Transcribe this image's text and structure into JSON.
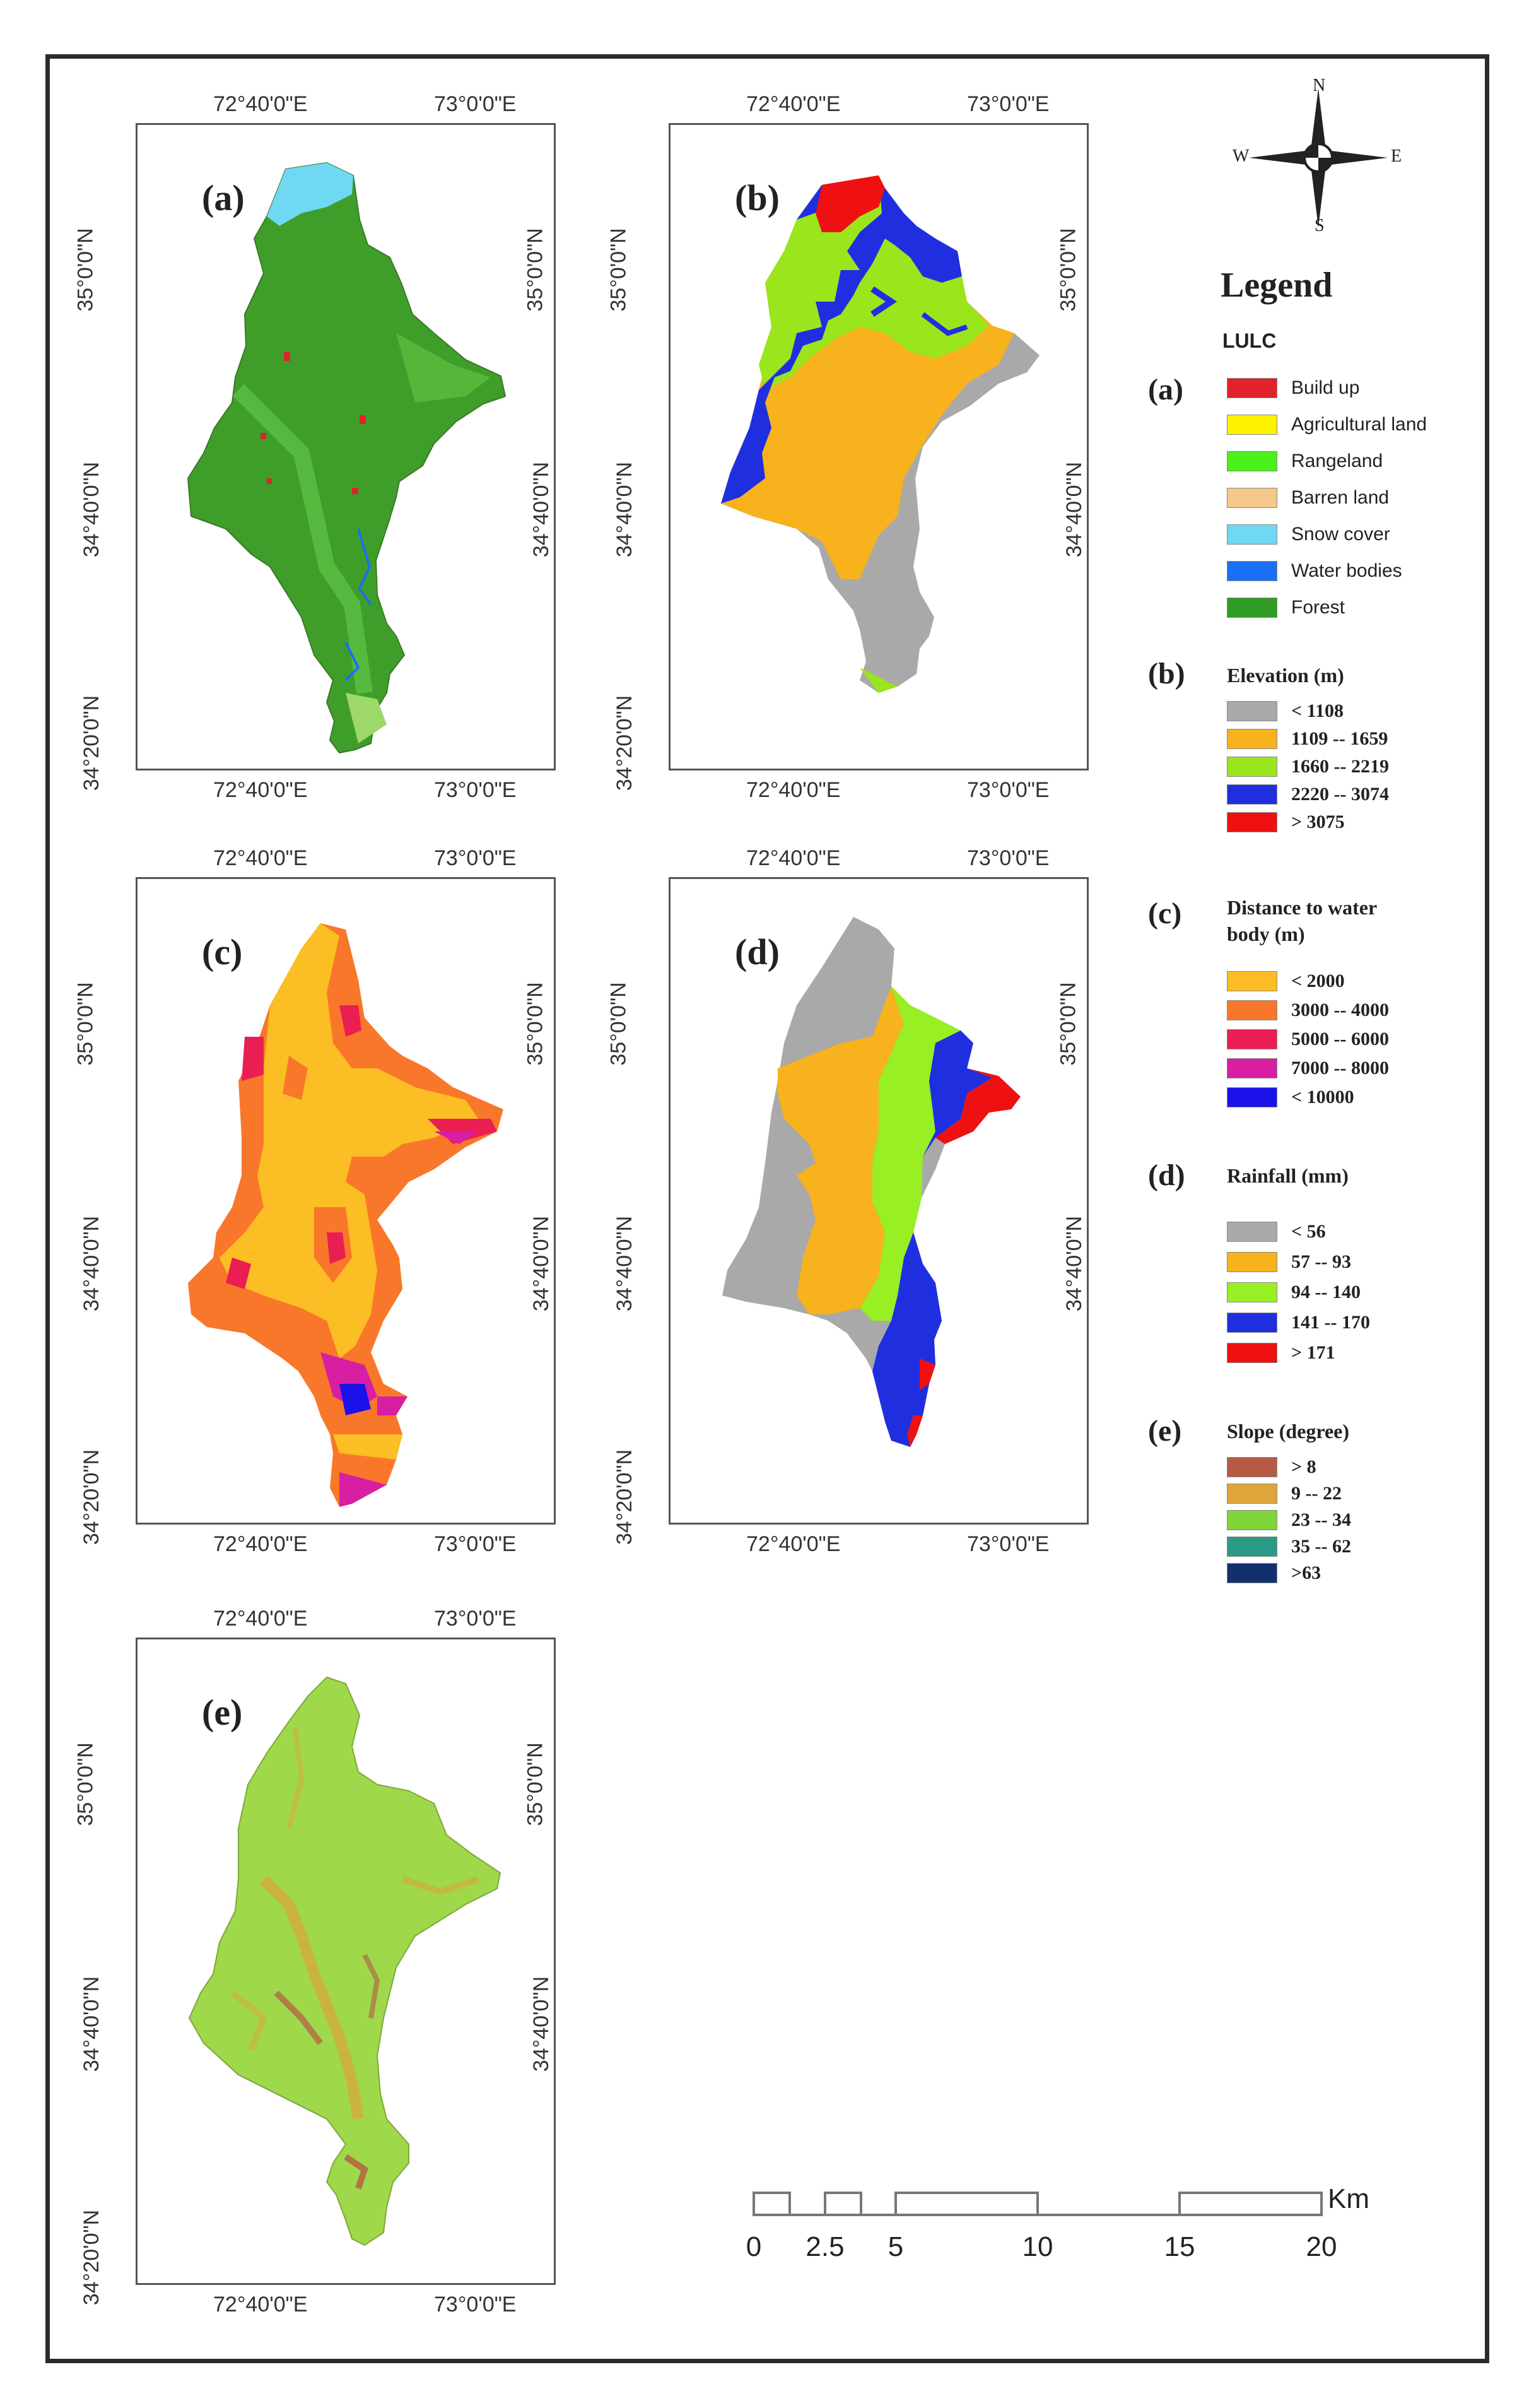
{
  "panels": [
    {
      "id": "a",
      "label": "(a)",
      "lon_left": "72°40'0\"E",
      "lon_right": "73°0'0\"E",
      "lat_top": "35°0'0\"N",
      "lat_bottom": "34°40'0\"N",
      "lat_lowest": "34°20'0\"N"
    },
    {
      "id": "b",
      "label": "(b)",
      "lon_left": "72°40'0\"E",
      "lon_right": "73°0'0\"E",
      "lat_top": "35°0'0\"N",
      "lat_bottom": "34°40'0\"N",
      "lat_lowest": "34°20'0\"N"
    },
    {
      "id": "c",
      "label": "(c)",
      "lon_left": "72°40'0\"E",
      "lon_right": "73°0'0\"E",
      "lat_top": "35°0'0\"N",
      "lat_bottom": "34°40'0\"N",
      "lat_lowest": "34°20'0\"N"
    },
    {
      "id": "d",
      "label": "(d)",
      "lon_left": "72°40'0\"E",
      "lon_right": "73°0'0\"E",
      "lat_top": "35°0'0\"N",
      "lat_bottom": "34°40'0\"N",
      "lat_lowest": "34°20'0\"N"
    },
    {
      "id": "e",
      "label": "(e)",
      "lon_left": "72°40'0\"E",
      "lon_right": "73°0'0\"E",
      "lat_top": "35°0'0\"N",
      "lat_bottom": "34°40'0\"N",
      "lat_lowest": "34°20'0\"N"
    }
  ],
  "compass": {
    "n": "N",
    "s": "S",
    "e": "E",
    "w": "W",
    "icon": "north-arrow-compass-icon"
  },
  "legend": {
    "title": "Legend",
    "lulc": {
      "heading": "LULC",
      "letter": "(a)",
      "items": [
        {
          "label": "Build up",
          "color": "#e0232a"
        },
        {
          "label": "Agricultural land",
          "color": "#fff200"
        },
        {
          "label": "Rangeland",
          "color": "#4cf01a"
        },
        {
          "label": "Barren land",
          "color": "#f3c88a"
        },
        {
          "label": "Snow cover",
          "color": "#6fd8f2"
        },
        {
          "label": "Water bodies",
          "color": "#1a6ff2"
        },
        {
          "label": "Forest",
          "color": "#2e9b24"
        }
      ]
    },
    "elevation": {
      "letter": "(b)",
      "heading": "Elevation (m)",
      "items": [
        {
          "label": "< 1108",
          "color": "#a9a9a9"
        },
        {
          "label": "1109 -- 1659",
          "color": "#f7b21d"
        },
        {
          "label": "1660 -- 2219",
          "color": "#9be51d"
        },
        {
          "label": "2220 -- 3074",
          "color": "#1f2fe0"
        },
        {
          "label": "> 3075",
          "color": "#ef1111"
        }
      ]
    },
    "distance": {
      "letter": "(c)",
      "heading_line1": "Distance to water",
      "heading_line2": "body (m)",
      "items": [
        {
          "label": "< 2000",
          "color": "#fbbe24"
        },
        {
          "label": "3000 -- 4000",
          "color": "#f9772a"
        },
        {
          "label": "5000 -- 6000",
          "color": "#ea1e52"
        },
        {
          "label": "7000 -- 8000",
          "color": "#d81ea2"
        },
        {
          "label": "< 10000",
          "color": "#1a12e8"
        }
      ]
    },
    "rainfall": {
      "letter": "(d)",
      "heading": "Rainfall (mm)",
      "items": [
        {
          "label": "< 56",
          "color": "#a9a9a9"
        },
        {
          "label": "57 -- 93",
          "color": "#f7b21d"
        },
        {
          "label": "94 -- 140",
          "color": "#97ef24"
        },
        {
          "label": "141 -- 170",
          "color": "#1f2fe0"
        },
        {
          "label": "> 171",
          "color": "#ef1111"
        }
      ]
    },
    "slope": {
      "letter": "(e)",
      "heading": "Slope (degree)",
      "items": [
        {
          "label": "> 8",
          "color": "#b65a45"
        },
        {
          "label": "9 -- 22",
          "color": "#dda53a"
        },
        {
          "label": "23 -- 34",
          "color": "#7fd43a"
        },
        {
          "label": "35 -- 62",
          "color": "#2a9a86"
        },
        {
          "label": ">63",
          "color": "#13306e"
        }
      ]
    }
  },
  "scalebar": {
    "ticks": [
      "0",
      "2.5",
      "5",
      "10",
      "15",
      "20"
    ],
    "unit": "Km"
  }
}
